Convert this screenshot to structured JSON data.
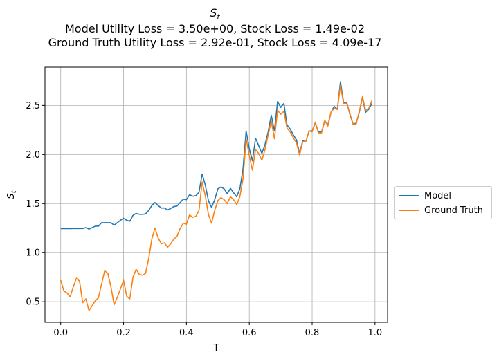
{
  "title": {
    "main": "S",
    "main_sub": "t",
    "line2": "Model Utility Loss = 3.50e+00, Stock Loss = 1.49e-02",
    "line3": "Ground Truth Utility Loss = 2.92e-01, Stock Loss = 4.09e-17"
  },
  "chart_data": {
    "type": "line",
    "xlabel": "T",
    "ylabel": "S",
    "ylabel_sub": "t",
    "xlim": [
      -0.05,
      1.04
    ],
    "ylim": [
      0.29,
      2.89
    ],
    "xticks": [
      0.0,
      0.2,
      0.4,
      0.6,
      0.8,
      1.0
    ],
    "xtick_labels": [
      "0.0",
      "0.2",
      "0.4",
      "0.6",
      "0.8",
      "1.0"
    ],
    "yticks": [
      0.5,
      1.0,
      1.5,
      2.0,
      2.5
    ],
    "ytick_labels": [
      "0.5",
      "1.0",
      "1.5",
      "2.0",
      "2.5"
    ],
    "grid": true,
    "legend_position": "center-right outside",
    "x": [
      0.0,
      0.01,
      0.02,
      0.03,
      0.04,
      0.05,
      0.06,
      0.07,
      0.08,
      0.09,
      0.1,
      0.11,
      0.12,
      0.13,
      0.14,
      0.15,
      0.16,
      0.17,
      0.18,
      0.19,
      0.2,
      0.21,
      0.22,
      0.23,
      0.24,
      0.25,
      0.26,
      0.27,
      0.28,
      0.29,
      0.3,
      0.31,
      0.32,
      0.33,
      0.34,
      0.35,
      0.36,
      0.37,
      0.38,
      0.39,
      0.4,
      0.41,
      0.42,
      0.43,
      0.44,
      0.45,
      0.46,
      0.47,
      0.48,
      0.49,
      0.5,
      0.51,
      0.52,
      0.53,
      0.54,
      0.55,
      0.56,
      0.57,
      0.58,
      0.59,
      0.6,
      0.61,
      0.62,
      0.63,
      0.64,
      0.65,
      0.66,
      0.67,
      0.68,
      0.69,
      0.7,
      0.71,
      0.72,
      0.73,
      0.74,
      0.75,
      0.76,
      0.77,
      0.78,
      0.79,
      0.8,
      0.81,
      0.82,
      0.83,
      0.84,
      0.85,
      0.86,
      0.87,
      0.88,
      0.89,
      0.9,
      0.91,
      0.92,
      0.93,
      0.94,
      0.95,
      0.96,
      0.97,
      0.98,
      0.99
    ],
    "series": [
      {
        "name": "Model",
        "color": "#1f77b4",
        "values": [
          1.245,
          1.245,
          1.245,
          1.245,
          1.246,
          1.246,
          1.246,
          1.246,
          1.255,
          1.24,
          1.255,
          1.27,
          1.27,
          1.305,
          1.305,
          1.305,
          1.305,
          1.28,
          1.305,
          1.33,
          1.35,
          1.33,
          1.32,
          1.38,
          1.4,
          1.39,
          1.39,
          1.395,
          1.43,
          1.48,
          1.51,
          1.48,
          1.455,
          1.455,
          1.435,
          1.45,
          1.47,
          1.475,
          1.51,
          1.545,
          1.54,
          1.59,
          1.575,
          1.58,
          1.615,
          1.8,
          1.69,
          1.53,
          1.46,
          1.54,
          1.65,
          1.67,
          1.65,
          1.6,
          1.655,
          1.61,
          1.57,
          1.65,
          1.85,
          2.24,
          2.06,
          1.935,
          2.165,
          2.09,
          2.01,
          2.1,
          2.23,
          2.4,
          2.24,
          2.54,
          2.48,
          2.52,
          2.3,
          2.26,
          2.2,
          2.15,
          2.01,
          2.14,
          2.13,
          2.24,
          2.24,
          2.32,
          2.23,
          2.23,
          2.34,
          2.3,
          2.43,
          2.49,
          2.46,
          2.74,
          2.53,
          2.53,
          2.41,
          2.31,
          2.32,
          2.43,
          2.58,
          2.43,
          2.46,
          2.52
        ]
      },
      {
        "name": "Ground Truth",
        "color": "#ff7f0e",
        "values": [
          0.72,
          0.61,
          0.59,
          0.55,
          0.65,
          0.74,
          0.71,
          0.49,
          0.53,
          0.41,
          0.46,
          0.51,
          0.54,
          0.68,
          0.815,
          0.79,
          0.65,
          0.47,
          0.545,
          0.63,
          0.72,
          0.555,
          0.53,
          0.75,
          0.83,
          0.78,
          0.77,
          0.79,
          0.94,
          1.14,
          1.25,
          1.15,
          1.09,
          1.1,
          1.055,
          1.09,
          1.14,
          1.165,
          1.245,
          1.3,
          1.29,
          1.385,
          1.36,
          1.37,
          1.43,
          1.72,
          1.58,
          1.39,
          1.3,
          1.43,
          1.53,
          1.56,
          1.54,
          1.5,
          1.57,
          1.54,
          1.49,
          1.57,
          1.75,
          2.16,
          1.99,
          1.84,
          2.05,
          2.01,
          1.94,
          2.05,
          2.2,
          2.34,
          2.16,
          2.45,
          2.41,
          2.44,
          2.27,
          2.23,
          2.17,
          2.12,
          1.995,
          2.13,
          2.13,
          2.24,
          2.23,
          2.33,
          2.22,
          2.22,
          2.35,
          2.29,
          2.43,
          2.47,
          2.46,
          2.7,
          2.52,
          2.52,
          2.42,
          2.31,
          2.31,
          2.44,
          2.59,
          2.45,
          2.47,
          2.55
        ]
      }
    ]
  }
}
